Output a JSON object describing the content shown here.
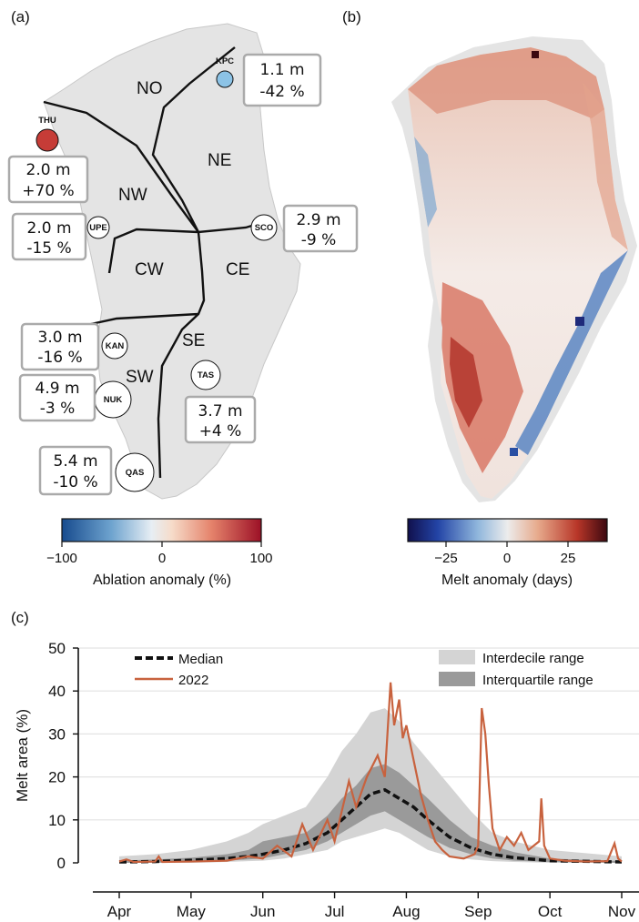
{
  "panels": {
    "a": {
      "label": "(a)",
      "regions": [
        "NO",
        "NE",
        "NW",
        "CW",
        "CE",
        "SE",
        "SW"
      ],
      "stations": [
        {
          "code": "KPC",
          "value": "1.1 m",
          "change": "-42 %",
          "anomaly_pct": -42,
          "color": "#8cc3e6"
        },
        {
          "code": "THU",
          "value": "2.0 m",
          "change": "+70 %",
          "anomaly_pct": 70,
          "color": "#c63c37"
        },
        {
          "code": "UPE",
          "value": "2.0 m",
          "change": "-15 %",
          "anomaly_pct": -15,
          "color": "#ffffff"
        },
        {
          "code": "SCO",
          "value": "2.9 m",
          "change": "-9 %",
          "anomaly_pct": -9,
          "color": "#ffffff"
        },
        {
          "code": "KAN",
          "value": "3.0 m",
          "change": "-16 %",
          "anomaly_pct": -16,
          "color": "#ffffff"
        },
        {
          "code": "NUK",
          "value": "4.9 m",
          "change": "-3 %",
          "anomaly_pct": -3,
          "color": "#ffffff"
        },
        {
          "code": "TAS",
          "value": "3.7 m",
          "change": "+4 %",
          "anomaly_pct": 4,
          "color": "#ffffff"
        },
        {
          "code": "QAS",
          "value": "5.4 m",
          "change": "-10 %",
          "anomaly_pct": -10,
          "color": "#ffffff"
        }
      ],
      "colorbar": {
        "label": "Ablation anomaly (%)",
        "ticks": [
          "−100",
          "0",
          "100"
        ]
      }
    },
    "b": {
      "label": "(b)",
      "colorbar": {
        "label": "Melt anomaly (days)",
        "ticks": [
          "−25",
          "0",
          "25"
        ]
      }
    },
    "c": {
      "label": "(c)"
    }
  },
  "chart_data": {
    "type": "line",
    "ylabel": "Melt area (%)",
    "ylim": [
      0,
      50
    ],
    "yticks": [
      0,
      10,
      20,
      30,
      40,
      50
    ],
    "xticklabels": [
      "Apr",
      "May",
      "Jun",
      "Jul",
      "Aug",
      "Sep",
      "Oct",
      "Nov"
    ],
    "x_unit": "month (1 = Apr 1)",
    "grid": "horizontal",
    "legend": [
      "Median",
      "2022",
      "Interdecile range",
      "Interquartile range"
    ],
    "colors": {
      "median": "#111111",
      "y2022": "#c8623e",
      "interdecile": "#d4d4d4",
      "interquartile": "#9a9a9a"
    },
    "median": {
      "x": [
        0,
        0.5,
        1,
        1.5,
        1.8,
        2,
        2.3,
        2.6,
        2.9,
        3.1,
        3.3,
        3.5,
        3.7,
        3.9,
        4.1,
        4.3,
        4.6,
        4.9,
        5.2,
        5.5,
        6,
        7
      ],
      "y": [
        0.2,
        0.3,
        0.6,
        1,
        1.5,
        2,
        3,
        4.5,
        7,
        10,
        13,
        16,
        17,
        15,
        13,
        10,
        6,
        3.5,
        2,
        1.2,
        0.5,
        0.2
      ]
    },
    "interquartile": {
      "x": [
        0,
        0.5,
        1,
        1.5,
        1.8,
        2,
        2.3,
        2.6,
        2.9,
        3.1,
        3.3,
        3.5,
        3.7,
        3.9,
        4.1,
        4.3,
        4.6,
        4.9,
        5.2,
        5.5,
        6,
        7
      ],
      "low": [
        0,
        0,
        0.2,
        0.5,
        0.8,
        1,
        2,
        3,
        5,
        7,
        9,
        11,
        12,
        10,
        8,
        6,
        3.5,
        2,
        1,
        0.5,
        0.2,
        0
      ],
      "high": [
        0.5,
        0.8,
        1.2,
        2,
        3,
        5,
        6,
        7,
        11,
        15,
        18,
        22,
        23,
        21,
        18,
        15,
        10,
        6,
        4,
        2.5,
        1,
        0.4
      ]
    },
    "interdecile": {
      "x": [
        0,
        0.5,
        1,
        1.5,
        1.8,
        2,
        2.3,
        2.6,
        2.9,
        3.1,
        3.3,
        3.5,
        3.7,
        3.9,
        4.1,
        4.3,
        4.6,
        4.9,
        5.2,
        5.5,
        6,
        7
      ],
      "low": [
        0,
        0,
        0,
        0.2,
        0.4,
        0.5,
        1,
        2,
        3,
        5,
        6,
        7,
        8,
        7,
        5,
        3,
        1.5,
        0.8,
        0.4,
        0.2,
        0,
        0
      ],
      "high": [
        1.5,
        2,
        3,
        5,
        7,
        9,
        11,
        13,
        20,
        26,
        30,
        35,
        36,
        33,
        28,
        24,
        18,
        12,
        7,
        5,
        3,
        1.5
      ]
    },
    "y2022": {
      "x": [
        0,
        0.1,
        0.2,
        0.5,
        0.55,
        0.6,
        1,
        1.5,
        1.8,
        2,
        2.2,
        2.4,
        2.55,
        2.7,
        2.9,
        3.0,
        3.1,
        3.2,
        3.3,
        3.45,
        3.6,
        3.7,
        3.78,
        3.83,
        3.9,
        3.95,
        4.0,
        4.1,
        4.2,
        4.3,
        4.4,
        4.5,
        4.6,
        4.8,
        4.95,
        5.0,
        5.05,
        5.1,
        5.15,
        5.2,
        5.3,
        5.4,
        5.5,
        5.6,
        5.7,
        5.85,
        5.88,
        5.92,
        6.0,
        6.2,
        6.5,
        6.8,
        6.9,
        6.95,
        7.0
      ],
      "y": [
        0.3,
        0.8,
        0.2,
        0.3,
        1.5,
        0.2,
        0.3,
        0.5,
        1.5,
        1,
        4,
        1.5,
        9,
        3,
        10,
        5,
        12,
        19,
        13,
        20,
        25,
        20,
        42,
        32,
        38,
        29,
        32,
        24,
        16,
        10,
        5,
        3,
        1.5,
        1,
        2,
        4,
        36,
        30,
        18,
        8,
        3,
        6,
        4,
        7,
        3,
        5,
        15,
        4,
        1,
        0.5,
        0.3,
        0.4,
        4.5,
        1,
        0.3
      ]
    }
  }
}
